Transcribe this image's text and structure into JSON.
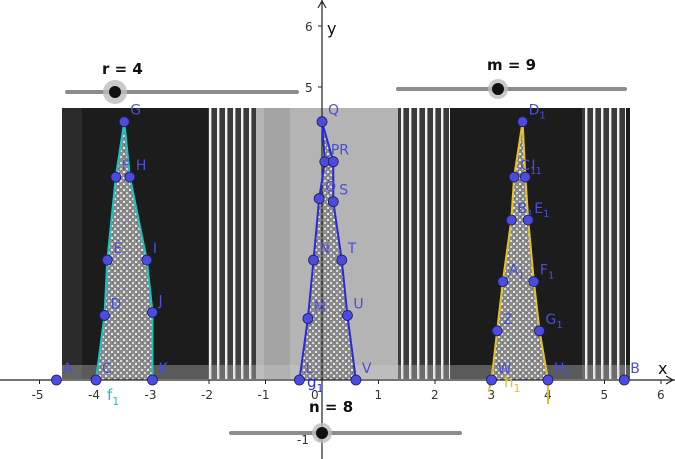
{
  "sliders": [
    {
      "name": "r",
      "label": "r = 4",
      "value": 4
    },
    {
      "name": "m",
      "label": "m = 9",
      "value": 9
    },
    {
      "name": "n",
      "label": "n = 8",
      "value": 8
    }
  ],
  "axes": {
    "x_label": "x",
    "y_label": "y",
    "x_ticks": [
      "-5",
      "-4",
      "-3",
      "-2",
      "-1",
      "0",
      "1",
      "2",
      "3",
      "4",
      "5",
      "6"
    ],
    "y_ticks": [
      "6",
      "5",
      "-1"
    ]
  },
  "colors": {
    "point": "#4c4cdc",
    "curve_f": "#17c4c4",
    "curve_g": "#2a2ad8",
    "curve_h": "#e2c12a",
    "axis": "#222222",
    "slider_track": "#8c8c8c",
    "label_f": "#17c4c4",
    "label_g": "#2a2ad8",
    "label_h": "#e2c12a"
  },
  "curve_labels": [
    {
      "name": "f",
      "text": "f",
      "sub": "1"
    },
    {
      "name": "g",
      "text": "g",
      "sub": "1"
    },
    {
      "name": "h",
      "text": "h",
      "sub": "1"
    }
  ],
  "points": [
    {
      "name": "A",
      "x": -4.7,
      "y": 0
    },
    {
      "name": "B",
      "x": 5.35,
      "y": 0
    },
    {
      "name": "C",
      "x": -4.0,
      "y": 0
    },
    {
      "name": "K",
      "x": -3.0,
      "y": 0
    },
    {
      "name": "D",
      "x": -3.85,
      "y": 1.05
    },
    {
      "name": "J",
      "x": -3.0,
      "y": 1.1
    },
    {
      "name": "E",
      "x": -3.8,
      "y": 1.95
    },
    {
      "name": "I",
      "x": -3.1,
      "y": 1.95
    },
    {
      "name": "F",
      "x": -3.65,
      "y": 3.3
    },
    {
      "name": "H",
      "x": -3.4,
      "y": 3.3
    },
    {
      "name": "G",
      "x": -3.5,
      "y": 4.2
    },
    {
      "name": "L",
      "x": -0.4,
      "y": 0
    },
    {
      "name": "V",
      "x": 0.6,
      "y": 0
    },
    {
      "name": "M",
      "x": -0.25,
      "y": 1.0
    },
    {
      "name": "U",
      "x": 0.45,
      "y": 1.05
    },
    {
      "name": "N",
      "x": -0.15,
      "y": 1.95
    },
    {
      "name": "T",
      "x": 0.35,
      "y": 1.95
    },
    {
      "name": "O",
      "x": -0.05,
      "y": 2.95
    },
    {
      "name": "S",
      "x": 0.2,
      "y": 2.9
    },
    {
      "name": "P",
      "x": 0.05,
      "y": 3.55
    },
    {
      "name": "R",
      "x": 0.2,
      "y": 3.55
    },
    {
      "name": "Q",
      "x": 0.0,
      "y": 4.2
    },
    {
      "name": "W",
      "x": 3.0,
      "y": 0
    },
    {
      "name": "H",
      "sub": "1",
      "x": 4.0,
      "y": 0
    },
    {
      "name": "Z",
      "x": 3.1,
      "y": 0.8
    },
    {
      "name": "G",
      "sub": "1",
      "x": 3.85,
      "y": 0.8
    },
    {
      "name": "A",
      "sub": "1",
      "x": 3.2,
      "y": 1.6
    },
    {
      "name": "F",
      "sub": "1",
      "x": 3.75,
      "y": 1.6
    },
    {
      "name": "B",
      "sub": "1",
      "x": 3.35,
      "y": 2.6
    },
    {
      "name": "E",
      "sub": "1",
      "x": 3.65,
      "y": 2.6
    },
    {
      "name": "C",
      "sub": "1",
      "x": 3.4,
      "y": 3.3
    },
    {
      "name": "I",
      "sub": "1",
      "x": 3.6,
      "y": 3.3
    },
    {
      "name": "D",
      "sub": "1",
      "x": 3.55,
      "y": 4.2
    }
  ]
}
